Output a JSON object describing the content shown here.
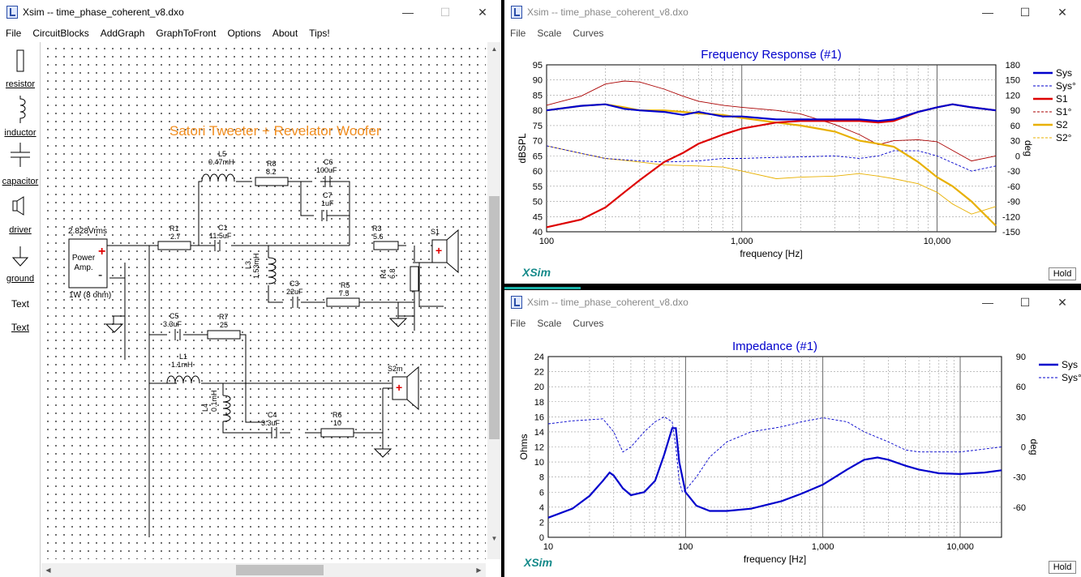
{
  "main_window": {
    "title": "Xsim -- time_phase_coherent_v8.dxo",
    "menu": [
      "File",
      "CircuitBlocks",
      "AddGraph",
      "GraphToFront",
      "Options",
      "About",
      "Tips!"
    ],
    "palette": [
      "resistor",
      "inductor",
      "capacitor",
      "driver",
      "ground",
      "Text",
      "Text"
    ],
    "schematic": {
      "heading": "Satori Tweeter + Revelator Woofer",
      "source_voltage": "2.828Vrms",
      "source_label": "Power Amp.",
      "source_load": "1W (8 ohm)",
      "components": {
        "L5": {
          "name": "L5",
          "value": "0.47mH"
        },
        "R8": {
          "name": "R8",
          "value": "8.2"
        },
        "C6": {
          "name": "C6",
          "value": "100uF"
        },
        "C7": {
          "name": "C7",
          "value": "1uF"
        },
        "R1": {
          "name": "R1",
          "value": "2.7"
        },
        "C1": {
          "name": "C1",
          "value": "11.5uF"
        },
        "R3": {
          "name": "R3",
          "value": "5.6"
        },
        "L3": {
          "name": "L3",
          "value": "1.53mH"
        },
        "R4": {
          "name": "R4",
          "value": "6.8"
        },
        "C3": {
          "name": "C3",
          "value": "22uF"
        },
        "R5": {
          "name": "R5",
          "value": "7.5"
        },
        "C5": {
          "name": "C5",
          "value": "3.3uF"
        },
        "R7": {
          "name": "R7",
          "value": "25"
        },
        "L1": {
          "name": "L1",
          "value": "1.1mH"
        },
        "L4": {
          "name": "L4",
          "value": "0.1mH"
        },
        "C4": {
          "name": "C4",
          "value": "3.3uF"
        },
        "R6": {
          "name": "R6",
          "value": "10"
        }
      },
      "drivers": {
        "S1": "S1",
        "S2m": "S2m"
      }
    }
  },
  "freq_window": {
    "title": "Xsim -- time_phase_coherent_v8.dxo",
    "menu": [
      "File",
      "Scale",
      "Curves"
    ],
    "hold_label": "Hold",
    "brand": "XSim",
    "chart_data": {
      "type": "line",
      "title": "Frequency Response (#1)",
      "xlabel": "frequency [Hz]",
      "ylabel": "dBSPL",
      "y2label": "deg",
      "xscale": "log",
      "xlim": [
        100,
        20000
      ],
      "ylim": [
        40,
        95
      ],
      "y2lim": [
        -150,
        180
      ],
      "x_ticks": [
        "100",
        "1,000",
        "10,000"
      ],
      "y_ticks": [
        "40",
        "45",
        "50",
        "55",
        "60",
        "65",
        "70",
        "75",
        "80",
        "85",
        "90",
        "95"
      ],
      "y2_ticks": [
        "-150",
        "-120",
        "-90",
        "-60",
        "-30",
        "0",
        "30",
        "60",
        "90",
        "120",
        "150",
        "180"
      ],
      "legend_position": "right",
      "series": [
        {
          "name": "Sys",
          "axis": "dB",
          "color": "#0000cc",
          "style": "solid",
          "x": [
            100,
            150,
            200,
            250,
            300,
            400,
            500,
            600,
            800,
            1000,
            1500,
            2000,
            3000,
            4000,
            5000,
            6000,
            8000,
            10000,
            12000,
            15000,
            20000
          ],
          "y": [
            80,
            81.5,
            82,
            80.5,
            80,
            79.5,
            78.5,
            79.5,
            78,
            78,
            77,
            77,
            77,
            77,
            76.5,
            77,
            79.5,
            81,
            82,
            81,
            80
          ]
        },
        {
          "name": "Sys°",
          "axis": "deg",
          "color": "#0000cc",
          "style": "dashed",
          "x": [
            100,
            150,
            200,
            300,
            400,
            600,
            800,
            1000,
            1500,
            2000,
            3000,
            4000,
            5000,
            6000,
            8000,
            10000,
            15000,
            20000
          ],
          "y": [
            20,
            5,
            -5,
            -10,
            -12,
            -10,
            -5,
            -5,
            -3,
            -2,
            0,
            -5,
            0,
            10,
            10,
            0,
            -30,
            -20
          ]
        },
        {
          "name": "S1",
          "axis": "dB",
          "color": "#dd0000",
          "style": "solid",
          "x": [
            100,
            150,
            200,
            250,
            300,
            400,
            500,
            600,
            800,
            1000,
            1500,
            2000,
            3000,
            4000,
            5000,
            6000,
            8000,
            10000,
            12000,
            15000,
            20000
          ],
          "y": [
            41.5,
            44,
            48,
            53,
            57,
            63,
            66,
            69,
            72,
            74,
            76,
            76.5,
            76.5,
            76.5,
            76,
            76.5,
            79.5,
            81,
            82,
            81,
            80
          ]
        },
        {
          "name": "S1°",
          "axis": "deg",
          "color": "#aa0000",
          "style": "solid-thin",
          "x": [
            100,
            150,
            200,
            250,
            300,
            400,
            500,
            600,
            800,
            1000,
            1500,
            2000,
            3000,
            4000,
            5000,
            6000,
            8000,
            10000,
            15000,
            20000
          ],
          "y": [
            100,
            118,
            142,
            148,
            146,
            132,
            118,
            108,
            100,
            96,
            90,
            83,
            62,
            42,
            22,
            30,
            32,
            28,
            -10,
            0
          ]
        },
        {
          "name": "S2",
          "axis": "dB",
          "color": "#e8b000",
          "style": "solid",
          "x": [
            100,
            150,
            200,
            250,
            300,
            400,
            500,
            600,
            800,
            1000,
            1500,
            2000,
            3000,
            4000,
            5000,
            6000,
            8000,
            10000,
            12000,
            15000,
            20000
          ],
          "y": [
            80,
            81.5,
            82,
            81,
            80,
            80,
            79.5,
            79,
            78.5,
            77.5,
            76,
            75,
            73,
            70,
            69,
            68,
            63,
            58,
            55,
            50,
            42
          ]
        },
        {
          "name": "S2°",
          "axis": "deg",
          "color": "#e8b000",
          "style": "solid-thin",
          "x": [
            100,
            150,
            200,
            300,
            400,
            600,
            800,
            1000,
            1500,
            2000,
            3000,
            4000,
            5000,
            6000,
            8000,
            10000,
            12000,
            15000,
            20000
          ],
          "y": [
            20,
            5,
            -5,
            -12,
            -18,
            -20,
            -22,
            -30,
            -45,
            -42,
            -40,
            -35,
            -40,
            -45,
            -55,
            -72,
            -95,
            -115,
            -100
          ]
        }
      ]
    }
  },
  "imp_window": {
    "title": "Xsim -- time_phase_coherent_v8.dxo",
    "menu": [
      "File",
      "Scale",
      "Curves"
    ],
    "hold_label": "Hold",
    "brand": "XSim",
    "chart_data": {
      "type": "line",
      "title": "Impedance (#1)",
      "xlabel": "frequency [Hz]",
      "ylabel": "Ohms",
      "y2label": "deg",
      "xscale": "log",
      "xlim": [
        10,
        20000
      ],
      "ylim": [
        0,
        24
      ],
      "y2lim": [
        -90,
        90
      ],
      "x_ticks": [
        "10",
        "100",
        "1,000",
        "10,000"
      ],
      "y_ticks": [
        "0",
        "2",
        "4",
        "6",
        "8",
        "10",
        "12",
        "14",
        "16",
        "18",
        "20",
        "22",
        "24"
      ],
      "y2_ticks": [
        "-60",
        "-30",
        "0",
        "30",
        "60",
        "90"
      ],
      "legend_position": "top-right",
      "series": [
        {
          "name": "Sys",
          "axis": "ohms",
          "color": "#0000cc",
          "style": "solid",
          "x": [
            10,
            15,
            20,
            25,
            28,
            30,
            35,
            40,
            50,
            60,
            70,
            80,
            85,
            90,
            100,
            120,
            150,
            200,
            300,
            500,
            700,
            1000,
            1500,
            2000,
            2500,
            3000,
            4000,
            5000,
            7000,
            10000,
            15000,
            20000
          ],
          "y": [
            2.6,
            3.8,
            5.5,
            7.5,
            8.6,
            8.2,
            6.5,
            5.6,
            6,
            7.5,
            11,
            14.5,
            14.5,
            10,
            6,
            4.2,
            3.5,
            3.5,
            3.8,
            4.8,
            5.8,
            7,
            9,
            10.3,
            10.6,
            10.3,
            9.5,
            9,
            8.5,
            8.4,
            8.6,
            8.9
          ]
        },
        {
          "name": "Sys°",
          "axis": "deg",
          "color": "#0000cc",
          "style": "dashed",
          "x": [
            10,
            15,
            20,
            25,
            30,
            35,
            40,
            50,
            60,
            70,
            80,
            85,
            90,
            95,
            100,
            120,
            150,
            200,
            300,
            500,
            700,
            1000,
            1500,
            2000,
            3000,
            4000,
            5000,
            10000,
            20000
          ],
          "y": [
            23,
            26,
            27,
            28,
            15,
            -5,
            0,
            15,
            25,
            30,
            25,
            0,
            -35,
            -45,
            -43,
            -30,
            -10,
            5,
            15,
            20,
            25,
            29,
            25,
            15,
            5,
            -3,
            -5,
            -5,
            0
          ]
        }
      ]
    }
  }
}
